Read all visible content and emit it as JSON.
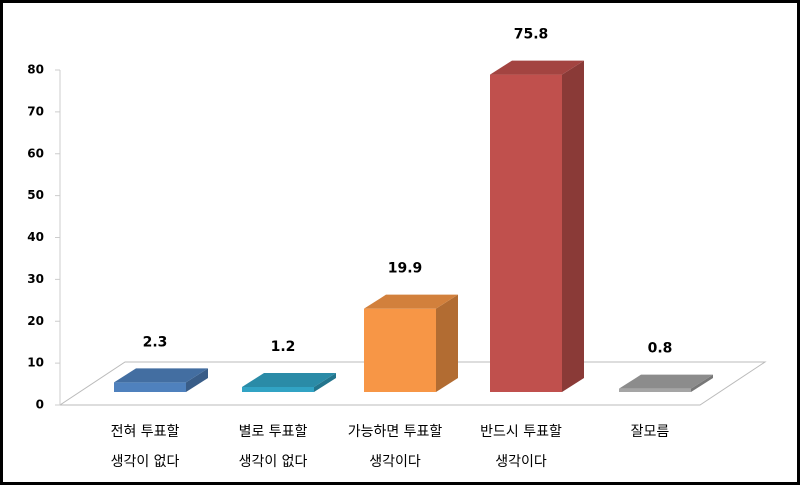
{
  "chart_data": {
    "type": "bar3d",
    "categories": [
      [
        "전혀 투표할",
        "생각이 없다"
      ],
      [
        "별로 투표할",
        "생각이 없다"
      ],
      [
        "가능하면 투표할",
        "생각이다"
      ],
      [
        "반드시 투표할",
        "생각이다"
      ],
      [
        "잘모름"
      ]
    ],
    "values": [
      2.3,
      1.2,
      19.9,
      75.8,
      0.8
    ],
    "colors": [
      "#4f81bd",
      "#31a3c4",
      "#f79646",
      "#c0504d",
      "#a5a5a5"
    ],
    "ylim": [
      0,
      80
    ],
    "yticks": [
      0,
      10,
      20,
      30,
      40,
      50,
      60,
      70,
      80
    ]
  }
}
